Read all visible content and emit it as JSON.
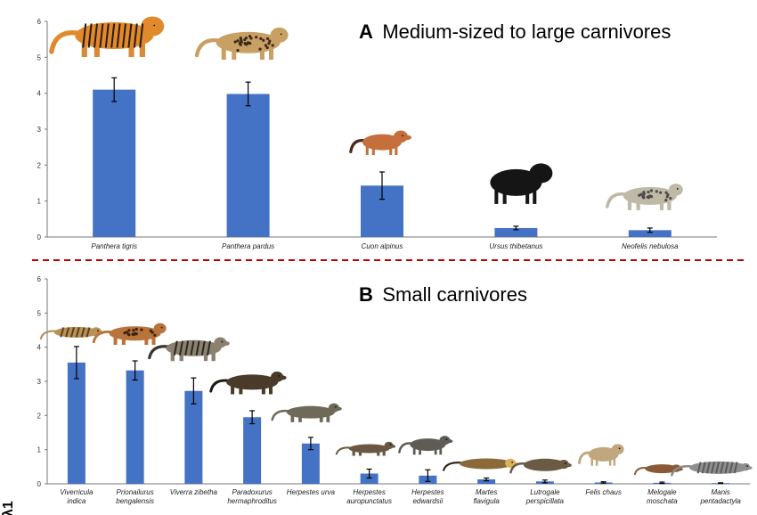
{
  "colors": {
    "bar": "#4472C4",
    "divider": "#C00000",
    "axis": "#777777",
    "error": "#000000"
  },
  "panels": [
    {
      "letter": "A",
      "title": "Medium-sized to large carnivores"
    },
    {
      "letter": "B",
      "title": "Small carnivores"
    }
  ],
  "y_axis_partial_label": "λ1",
  "chart_data": [
    {
      "type": "bar",
      "title": "A Medium-sized to large carnivores",
      "ylim": [
        0,
        6
      ],
      "yticks": [
        0,
        1,
        2,
        3,
        4,
        5,
        6
      ],
      "categories": [
        [
          "Panthera tigris"
        ],
        [
          "Panthera pardus"
        ],
        [
          "Cuon alpinus"
        ],
        [
          "Ursus thibetanus"
        ],
        [
          "Neofelis nebulosa"
        ]
      ],
      "values": [
        4.1,
        3.98,
        1.43,
        0.25,
        0.19
      ],
      "errors": [
        0.33,
        0.33,
        0.38,
        0.05,
        0.06
      ],
      "grid": false,
      "legend": "none"
    },
    {
      "type": "bar",
      "title": "B Small carnivores",
      "ylim": [
        0,
        6
      ],
      "yticks": [
        0,
        1,
        2,
        3,
        4,
        5,
        6
      ],
      "categories": [
        [
          "Viverricula",
          "indica"
        ],
        [
          "Prionailurus",
          "bengalensis"
        ],
        [
          "Viverra zibetha"
        ],
        [
          "Paradoxurus",
          "hermaphroditus"
        ],
        [
          "Herpestes urva"
        ],
        [
          "Herpestes",
          "auropunctatus"
        ],
        [
          "Herpestes",
          "edwardsii"
        ],
        [
          "Martes",
          "flavigula"
        ],
        [
          "Lutrogale",
          "perspicillata"
        ],
        [
          "Felis chaus"
        ],
        [
          "Melogale",
          "moschata"
        ],
        [
          "Manis",
          "pentadactyla"
        ]
      ],
      "values": [
        3.55,
        3.32,
        2.72,
        1.95,
        1.18,
        0.3,
        0.24,
        0.13,
        0.07,
        0.04,
        0.03,
        0.02
      ],
      "errors": [
        0.47,
        0.28,
        0.38,
        0.19,
        0.18,
        0.13,
        0.17,
        0.04,
        0.04,
        0.02,
        0.02,
        0.01
      ],
      "grid": false,
      "legend": "none"
    }
  ],
  "animal_images": [
    {
      "name": "tiger",
      "panel": 0,
      "bar": 0
    },
    {
      "name": "leopard",
      "panel": 0,
      "bar": 1
    },
    {
      "name": "dhole",
      "panel": 0,
      "bar": 2
    },
    {
      "name": "asiatic-black-bear",
      "panel": 0,
      "bar": 3
    },
    {
      "name": "clouded-leopard",
      "panel": 0,
      "bar": 4
    },
    {
      "name": "small-indian-civet",
      "panel": 1,
      "bar": 0
    },
    {
      "name": "leopard-cat",
      "panel": 1,
      "bar": 1
    },
    {
      "name": "large-indian-civet",
      "panel": 1,
      "bar": 2
    },
    {
      "name": "palm-civet",
      "panel": 1,
      "bar": 3
    },
    {
      "name": "crab-eating-mongoose",
      "panel": 1,
      "bar": 4
    },
    {
      "name": "small-asian-mongoose",
      "panel": 1,
      "bar": 5
    },
    {
      "name": "indian-grey-mongoose",
      "panel": 1,
      "bar": 6
    },
    {
      "name": "yellow-throated-marten",
      "panel": 1,
      "bar": 7
    },
    {
      "name": "smooth-coated-otter",
      "panel": 1,
      "bar": 8
    },
    {
      "name": "jungle-cat",
      "panel": 1,
      "bar": 9
    },
    {
      "name": "ferret-badger",
      "panel": 1,
      "bar": 10
    },
    {
      "name": "pangolin",
      "panel": 1,
      "bar": 11
    }
  ]
}
